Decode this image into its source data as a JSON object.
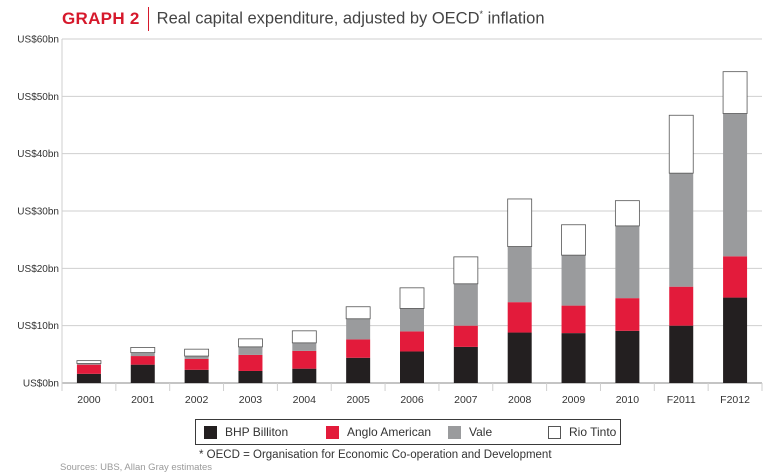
{
  "header": {
    "label": "GRAPH 2",
    "title": "Real capital expenditure, adjusted by OECD",
    "title_sup": "*",
    "title_end": " inflation"
  },
  "chart_data": {
    "type": "bar",
    "stacked": true,
    "categories": [
      "2000",
      "2001",
      "2002",
      "2003",
      "2004",
      "2005",
      "2006",
      "2007",
      "2008",
      "2009",
      "2010",
      "F2011",
      "F2012"
    ],
    "series": [
      {
        "name": "BHP Billiton",
        "color": "#231f20",
        "values": [
          1.6,
          3.2,
          2.3,
          2.1,
          2.5,
          4.4,
          5.5,
          6.3,
          8.8,
          8.7,
          9.1,
          10.0,
          14.9
        ]
      },
      {
        "name": "Anglo American",
        "color": "#e31b3b",
        "values": [
          1.6,
          1.5,
          1.9,
          2.8,
          3.1,
          3.2,
          3.5,
          3.7,
          5.3,
          4.8,
          5.7,
          6.8,
          7.2
        ]
      },
      {
        "name": "Vale",
        "color": "#9a9b9d",
        "values": [
          0.2,
          0.6,
          0.5,
          1.4,
          1.4,
          3.6,
          4.0,
          7.3,
          9.7,
          8.8,
          12.6,
          19.8,
          24.9
        ]
      },
      {
        "name": "Rio Tinto",
        "color": "#ffffff",
        "values": [
          0.5,
          0.9,
          1.2,
          1.4,
          2.1,
          2.1,
          3.6,
          4.7,
          8.3,
          5.3,
          4.4,
          10.1,
          7.3
        ]
      }
    ],
    "ylim": [
      0,
      60
    ],
    "yticks": [
      0,
      10,
      20,
      30,
      40,
      50,
      60
    ],
    "ytick_labels": [
      "US$0bn",
      "US$10bn",
      "US$20bn",
      "US$30bn",
      "US$40bn",
      "US$50bn",
      "US$60bn"
    ],
    "grid": true,
    "legend_position": "bottom"
  },
  "footnote": "* OECD = Organisation for Economic Co-operation and Development",
  "sources": "Sources: UBS, Allan Gray estimates"
}
